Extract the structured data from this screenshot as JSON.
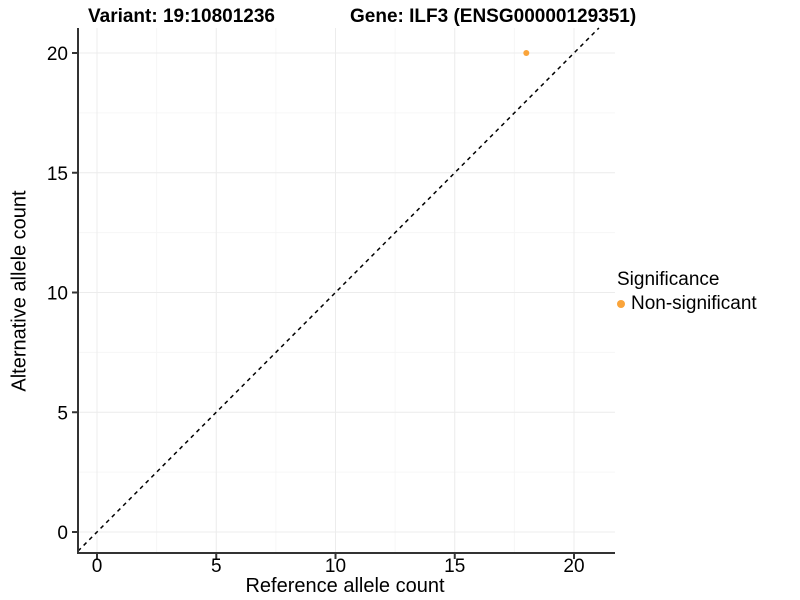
{
  "title": {
    "variant": "Variant: 19:10801236",
    "gene": "Gene: ILF3 (ENSG00000129351)"
  },
  "axes": {
    "x": {
      "label": "Reference allele count",
      "ticks": [
        0,
        5,
        10,
        15,
        20
      ],
      "minor": [
        2.5,
        7.5,
        12.5,
        17.5
      ]
    },
    "y": {
      "label": "Alternative allele count",
      "ticks": [
        0,
        5,
        10,
        15,
        20
      ],
      "minor": [
        2.5,
        7.5,
        12.5,
        17.5
      ]
    }
  },
  "legend": {
    "title": "Significance",
    "items": [
      {
        "label": "Non-significant",
        "color": "#FAA43A"
      }
    ]
  },
  "colors": {
    "point": "#FAA43A",
    "axis_line": "#333333",
    "grid_major": "#ececec",
    "grid_minor": "#f6f6f6",
    "dashed_line": "#000000",
    "text": "#000000"
  },
  "chart_data": {
    "type": "scatter",
    "title": "Variant: 19:10801236   Gene: ILF3 (ENSG00000129351)",
    "xlabel": "Reference allele count",
    "ylabel": "Alternative allele count",
    "xlim": [
      -0.8,
      21.7
    ],
    "ylim": [
      -0.9,
      21
    ],
    "grid": true,
    "legend_position": "right",
    "series": [
      {
        "name": "Non-significant",
        "color": "#FAA43A",
        "points": [
          {
            "x": 18,
            "y": 20
          }
        ]
      }
    ],
    "reference_line": {
      "type": "identity",
      "equation": "y = x",
      "style": "dashed",
      "color": "#000000"
    }
  }
}
